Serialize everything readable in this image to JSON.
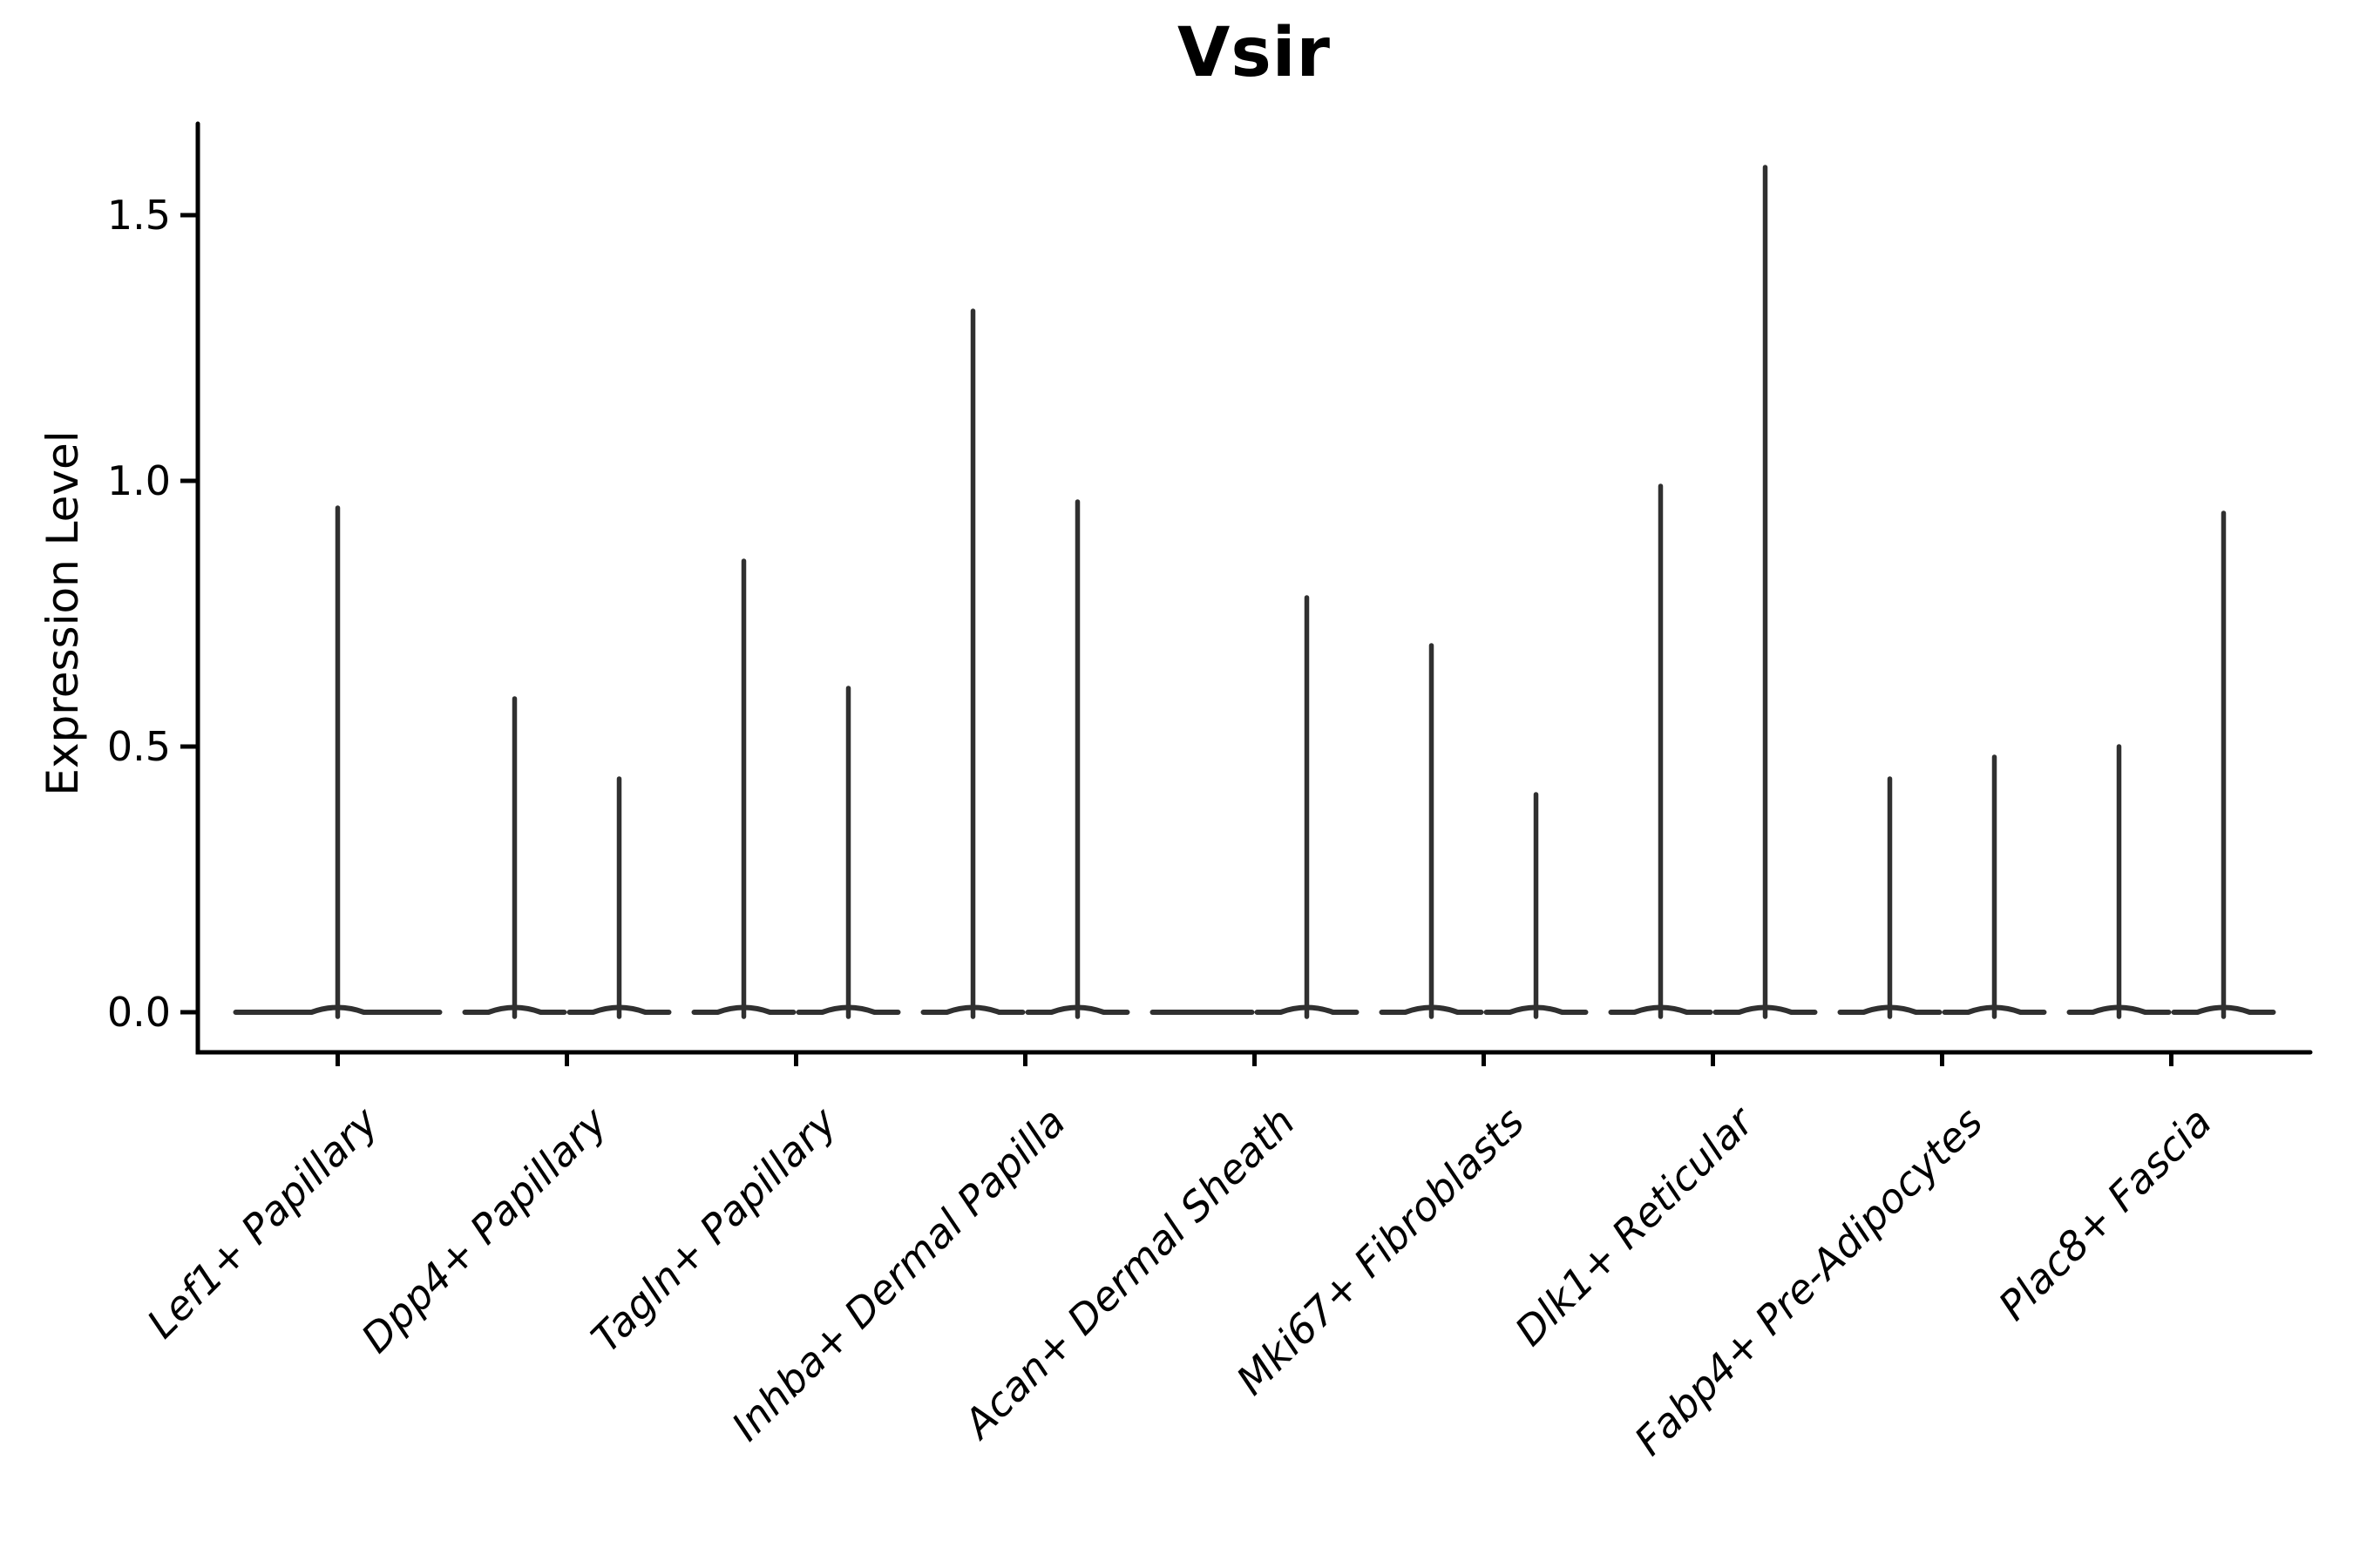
{
  "title": "Vsir",
  "y_axis": {
    "label": "Expression Level",
    "ticks": [
      "0.0",
      "0.5",
      "1.0",
      "1.5"
    ],
    "tick_values": [
      0.0,
      0.5,
      1.0,
      1.5
    ]
  },
  "chart_data": {
    "type": "violin",
    "title": "Vsir",
    "xlabel": "",
    "ylabel": "Expression Level",
    "ylim": [
      -0.08,
      1.67
    ],
    "yticks": [
      0.0,
      0.5,
      1.0,
      1.5
    ],
    "grid": false,
    "legend": "none",
    "stroke_color": "#303030",
    "axis_color": "#000000",
    "categories": [
      "Lef1+ Papillary",
      "Dpp4+ Papillary",
      "Tagln+ Papillary",
      "Inhba+ Dermal Papilla",
      "Acan+ Dermal Sheath",
      "Mki67+ Fibroblasts",
      "Dlk1+ Reticular",
      "Fabp4+ Pre-Adipocytes",
      "Plac8+ Fascia"
    ],
    "violins": [
      {
        "category": "Lef1+ Papillary",
        "groups": [
          {
            "position": "center",
            "max_expression": 0.95
          }
        ]
      },
      {
        "category": "Dpp4+ Papillary",
        "groups": [
          {
            "position": "left",
            "max_expression": 0.59
          },
          {
            "position": "right",
            "max_expression": 0.44
          }
        ]
      },
      {
        "category": "Tagln+ Papillary",
        "groups": [
          {
            "position": "left",
            "max_expression": 0.85
          },
          {
            "position": "right",
            "max_expression": 0.61
          }
        ]
      },
      {
        "category": "Inhba+ Dermal Papilla",
        "groups": [
          {
            "position": "left",
            "max_expression": 1.32
          },
          {
            "position": "right",
            "max_expression": 0.96
          }
        ]
      },
      {
        "category": "Acan+ Dermal Sheath",
        "groups": [
          {
            "position": "left",
            "max_expression": 0.0
          },
          {
            "position": "right",
            "max_expression": 0.78
          }
        ]
      },
      {
        "category": "Mki67+ Fibroblasts",
        "groups": [
          {
            "position": "left",
            "max_expression": 0.69
          },
          {
            "position": "right",
            "max_expression": 0.41
          }
        ]
      },
      {
        "category": "Dlk1+ Reticular",
        "groups": [
          {
            "position": "left",
            "max_expression": 0.99
          },
          {
            "position": "right",
            "max_expression": 1.59
          }
        ]
      },
      {
        "category": "Fabp4+ Pre-Adipocytes",
        "groups": [
          {
            "position": "left",
            "max_expression": 0.44
          },
          {
            "position": "right",
            "max_expression": 0.48
          }
        ]
      },
      {
        "category": "Plac8+ Fascia",
        "groups": [
          {
            "position": "left",
            "max_expression": 0.5
          },
          {
            "position": "right",
            "max_expression": 0.94
          }
        ]
      }
    ]
  }
}
